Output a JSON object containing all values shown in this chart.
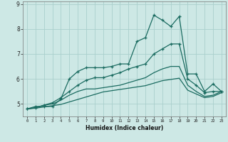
{
  "title": "",
  "xlabel": "Humidex (Indice chaleur)",
  "bg_color": "#cde8e5",
  "grid_color": "#aacfcc",
  "line_color": "#1a6b60",
  "x_values": [
    0,
    1,
    2,
    3,
    4,
    5,
    6,
    7,
    8,
    9,
    10,
    11,
    12,
    13,
    14,
    15,
    16,
    17,
    18,
    19,
    20,
    21,
    22,
    23
  ],
  "line1": [
    4.8,
    4.9,
    4.9,
    4.9,
    5.2,
    6.0,
    6.3,
    6.45,
    6.45,
    6.45,
    6.5,
    6.6,
    6.6,
    7.5,
    7.65,
    8.55,
    8.35,
    8.1,
    8.5,
    6.2,
    6.2,
    5.5,
    5.8,
    5.5
  ],
  "line2": [
    4.8,
    4.85,
    4.95,
    5.05,
    5.25,
    5.5,
    5.75,
    5.95,
    6.05,
    6.05,
    6.15,
    6.25,
    6.4,
    6.5,
    6.6,
    7.0,
    7.2,
    7.4,
    7.4,
    6.0,
    5.75,
    5.45,
    5.5,
    5.5
  ],
  "line3": [
    4.8,
    4.85,
    4.95,
    5.0,
    5.15,
    5.35,
    5.5,
    5.6,
    5.6,
    5.65,
    5.7,
    5.75,
    5.85,
    5.95,
    6.05,
    6.25,
    6.4,
    6.5,
    6.5,
    5.75,
    5.5,
    5.3,
    5.35,
    5.5
  ],
  "line4": [
    4.8,
    4.83,
    4.88,
    4.93,
    4.98,
    5.08,
    5.18,
    5.28,
    5.38,
    5.48,
    5.53,
    5.58,
    5.63,
    5.68,
    5.73,
    5.83,
    5.93,
    5.98,
    6.03,
    5.55,
    5.4,
    5.25,
    5.3,
    5.45
  ],
  "ylim": [
    4.5,
    9.1
  ],
  "yticks": [
    5,
    6,
    7,
    8,
    9
  ],
  "xlim": [
    -0.5,
    23.5
  ]
}
